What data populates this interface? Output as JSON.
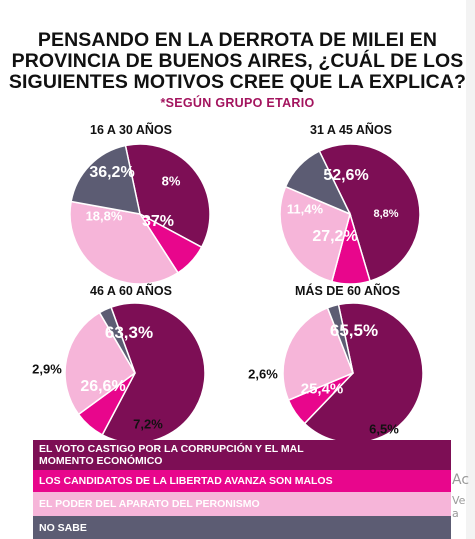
{
  "title_lines": [
    "PENSANDO EN LA DERROTA DE MILEI EN",
    "PROVINCIA DE BUENOS AIRES, ¿CUÁL DE LOS",
    "SIGUIENTES MOTIVOS CREE QUE LA EXPLICA?"
  ],
  "subtitle": "*SEGÚN GRUPO ETARIO",
  "colors": {
    "castigo": "#7d0e55",
    "candidatos": "#e8068c",
    "aparato": "#f6b5d9",
    "nosabe": "#5c5c73"
  },
  "legend": [
    {
      "key": "castigo",
      "label_lines": [
        "EL VOTO CASTIGO POR LA CORRUPCIÓN Y EL MAL",
        "MOMENTO ECONÓMICO"
      ]
    },
    {
      "key": "candidatos",
      "label_lines": [
        "LOS CANDIDATOS DE LA LIBERTAD AVANZA SON MALOS"
      ]
    },
    {
      "key": "aparato",
      "label_lines": [
        "EL PODER DEL APARATO DEL PERONISMO"
      ]
    },
    {
      "key": "nosabe",
      "label_lines": [
        "NO SABE"
      ]
    }
  ],
  "chart_data": [
    {
      "type": "pie",
      "title": "16 A 30 AÑOS",
      "slices": [
        {
          "key": "castigo",
          "value": 36.2,
          "label": "36,2%"
        },
        {
          "key": "candidatos",
          "value": 8,
          "label": "8%"
        },
        {
          "key": "aparato",
          "value": 37,
          "label": "37%"
        },
        {
          "key": "nosabe",
          "value": 18.8,
          "label": "18,8%"
        }
      ]
    },
    {
      "type": "pie",
      "title": "31 A 45 AÑOS",
      "slices": [
        {
          "key": "castigo",
          "value": 52.6,
          "label": "52,6%"
        },
        {
          "key": "candidatos",
          "value": 8.8,
          "label": "8,8%"
        },
        {
          "key": "aparato",
          "value": 27.2,
          "label": "27,2%"
        },
        {
          "key": "nosabe",
          "value": 11.4,
          "label": "11,4%"
        }
      ]
    },
    {
      "type": "pie",
      "title": "46 A 60 AÑOS",
      "slices": [
        {
          "key": "castigo",
          "value": 63.3,
          "label": "63,3%"
        },
        {
          "key": "candidatos",
          "value": 7.2,
          "label": "7,2%"
        },
        {
          "key": "aparato",
          "value": 26.6,
          "label": "26,6%"
        },
        {
          "key": "nosabe",
          "value": 2.9,
          "label": "2,9%"
        }
      ]
    },
    {
      "type": "pie",
      "title": "MÁS DE 60 AÑOS",
      "slices": [
        {
          "key": "castigo",
          "value": 65.5,
          "label": "65,5%"
        },
        {
          "key": "candidatos",
          "value": 6.5,
          "label": "6,5%"
        },
        {
          "key": "aparato",
          "value": 25.4,
          "label": "25,4%"
        },
        {
          "key": "nosabe",
          "value": 2.6,
          "label": "2,6%"
        }
      ]
    }
  ],
  "background_text": [
    "Ac",
    "Ve a"
  ]
}
